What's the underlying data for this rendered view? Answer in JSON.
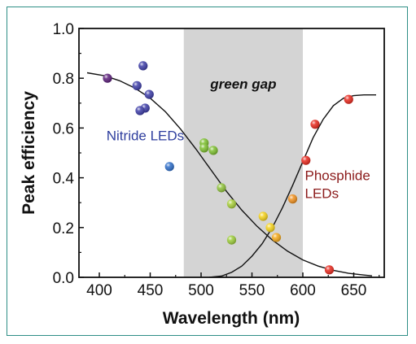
{
  "chart_data": {
    "type": "scatter",
    "title": "",
    "xlabel": "Wavelength (nm)",
    "ylabel": "Peak efficiency",
    "xlim": [
      380,
      680
    ],
    "ylim": [
      0.0,
      1.0
    ],
    "x_ticks": [
      "400",
      "450",
      "500",
      "550",
      "600",
      "650"
    ],
    "y_ticks": [
      "0.0",
      "0.2",
      "0.4",
      "0.6",
      "0.8",
      "1.0"
    ],
    "grid": false,
    "shaded_region": {
      "label": "green gap",
      "x_range": [
        483,
        600
      ],
      "color": "#d4d4d4"
    },
    "annotations": [
      {
        "text_lines": [
          "Nitride LEDs"
        ],
        "color": "#2e3e9e",
        "x": 407,
        "y": 0.55
      },
      {
        "text_lines": [
          "Phosphide",
          "LEDs"
        ],
        "color": "#8b1a1a",
        "x": 602,
        "y": 0.39
      }
    ],
    "points": [
      {
        "x": 408,
        "y": 0.8,
        "color": "#5b1e7a"
      },
      {
        "x": 437,
        "y": 0.77,
        "color": "#3d3da8"
      },
      {
        "x": 443,
        "y": 0.85,
        "color": "#3d3da8"
      },
      {
        "x": 449,
        "y": 0.735,
        "color": "#3d3da8"
      },
      {
        "x": 445,
        "y": 0.68,
        "color": "#3d3da8"
      },
      {
        "x": 440,
        "y": 0.67,
        "color": "#3d3da8"
      },
      {
        "x": 469,
        "y": 0.445,
        "color": "#2e6ec9"
      },
      {
        "x": 503,
        "y": 0.54,
        "color": "#7cbf2e"
      },
      {
        "x": 503,
        "y": 0.52,
        "color": "#7cbf2e"
      },
      {
        "x": 512,
        "y": 0.51,
        "color": "#7cbf2e"
      },
      {
        "x": 520,
        "y": 0.36,
        "color": "#8fc23a"
      },
      {
        "x": 530,
        "y": 0.295,
        "color": "#a8cf3a"
      },
      {
        "x": 530,
        "y": 0.15,
        "color": "#9ccc3a"
      },
      {
        "x": 561,
        "y": 0.245,
        "color": "#f5d21a"
      },
      {
        "x": 568,
        "y": 0.2,
        "color": "#f5d21a"
      },
      {
        "x": 574,
        "y": 0.16,
        "color": "#f4a81a"
      },
      {
        "x": 590,
        "y": 0.315,
        "color": "#f0901e"
      },
      {
        "x": 603,
        "y": 0.47,
        "color": "#e8291e"
      },
      {
        "x": 612,
        "y": 0.615,
        "color": "#e8291e"
      },
      {
        "x": 626,
        "y": 0.03,
        "color": "#e8291e"
      },
      {
        "x": 645,
        "y": 0.715,
        "color": "#e8291e"
      }
    ],
    "curves": [
      {
        "x": [
          388,
          405,
          420,
          435,
          450,
          465,
          480,
          495,
          510,
          525,
          540,
          555,
          570,
          585,
          600,
          615,
          630,
          645,
          660,
          668
        ],
        "y": [
          0.822,
          0.81,
          0.79,
          0.76,
          0.72,
          0.665,
          0.595,
          0.515,
          0.43,
          0.345,
          0.27,
          0.205,
          0.15,
          0.105,
          0.07,
          0.045,
          0.028,
          0.016,
          0.009,
          0.006
        ]
      },
      {
        "x": [
          508,
          520,
          530,
          540,
          550,
          560,
          570,
          580,
          590,
          600,
          610,
          620,
          630,
          640,
          650,
          660,
          672
        ],
        "y": [
          0.0,
          0.005,
          0.02,
          0.045,
          0.085,
          0.135,
          0.2,
          0.28,
          0.37,
          0.465,
          0.56,
          0.635,
          0.69,
          0.72,
          0.73,
          0.733,
          0.733
        ]
      }
    ]
  }
}
